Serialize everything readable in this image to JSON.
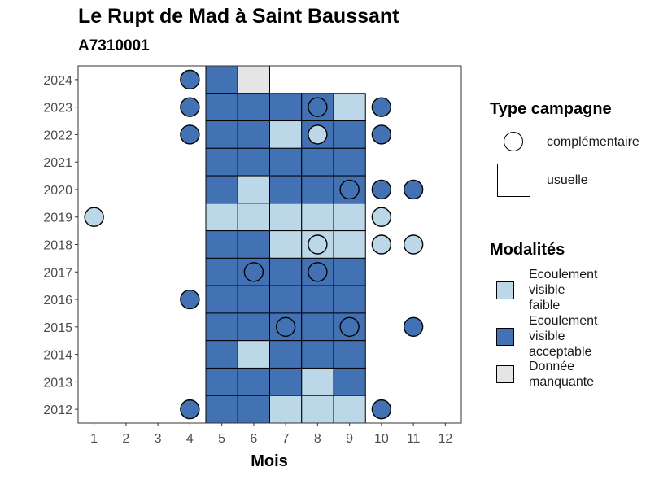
{
  "chart_data": {
    "type": "heatmap",
    "title": "Le Rupt de Mad à Saint Baussant",
    "subtitle": "A7310001",
    "xlabel": "Mois",
    "ylabel": "",
    "x_ticks": [
      "1",
      "2",
      "3",
      "4",
      "5",
      "6",
      "7",
      "8",
      "9",
      "10",
      "11",
      "12"
    ],
    "y_ticks": [
      "2012",
      "2013",
      "2014",
      "2015",
      "2016",
      "2017",
      "2018",
      "2019",
      "2020",
      "2021",
      "2022",
      "2023",
      "2024"
    ],
    "xlim": [
      0.5,
      12.5
    ],
    "ylim": [
      2011.5,
      2024.5
    ],
    "colors": {
      "faible": "#bcd7e8",
      "acceptable": "#4372b4",
      "manquante": "#e5e5e5"
    },
    "legend_type": {
      "title": "Type campagne",
      "items": [
        {
          "label": "complémentaire",
          "shape": "circle"
        },
        {
          "label": "usuelle",
          "shape": "square"
        }
      ]
    },
    "legend_modalites": {
      "title": "Modalités",
      "items": [
        {
          "key": "faible",
          "label_lines": [
            "Ecoulement",
            "visible",
            "faible"
          ]
        },
        {
          "key": "acceptable",
          "label_lines": [
            "Ecoulement",
            "visible",
            "acceptable"
          ]
        },
        {
          "key": "manquante",
          "label_lines": [
            "Donnée",
            "manquante"
          ]
        }
      ]
    },
    "usuelle": [
      {
        "year": 2024,
        "months": {
          "5": "acceptable",
          "6": "manquante"
        }
      },
      {
        "year": 2023,
        "months": {
          "5": "acceptable",
          "6": "acceptable",
          "7": "acceptable",
          "8": "acceptable",
          "9": "faible"
        }
      },
      {
        "year": 2022,
        "months": {
          "5": "acceptable",
          "6": "acceptable",
          "7": "faible",
          "8": "acceptable",
          "9": "acceptable"
        }
      },
      {
        "year": 2021,
        "months": {
          "5": "acceptable",
          "6": "acceptable",
          "7": "acceptable",
          "8": "acceptable",
          "9": "acceptable"
        }
      },
      {
        "year": 2020,
        "months": {
          "5": "acceptable",
          "6": "faible",
          "7": "acceptable",
          "8": "acceptable",
          "9": "acceptable"
        }
      },
      {
        "year": 2019,
        "months": {
          "5": "faible",
          "6": "faible",
          "7": "faible",
          "8": "faible",
          "9": "faible"
        }
      },
      {
        "year": 2018,
        "months": {
          "5": "acceptable",
          "6": "acceptable",
          "7": "faible",
          "8": "faible",
          "9": "faible"
        }
      },
      {
        "year": 2017,
        "months": {
          "5": "acceptable",
          "6": "acceptable",
          "7": "acceptable",
          "8": "acceptable",
          "9": "acceptable"
        }
      },
      {
        "year": 2016,
        "months": {
          "5": "acceptable",
          "6": "acceptable",
          "7": "acceptable",
          "8": "acceptable",
          "9": "acceptable"
        }
      },
      {
        "year": 2015,
        "months": {
          "5": "acceptable",
          "6": "acceptable",
          "7": "acceptable",
          "8": "acceptable",
          "9": "acceptable"
        }
      },
      {
        "year": 2014,
        "months": {
          "5": "acceptable",
          "6": "faible",
          "7": "acceptable",
          "8": "acceptable",
          "9": "acceptable"
        }
      },
      {
        "year": 2013,
        "months": {
          "5": "acceptable",
          "6": "acceptable",
          "7": "acceptable",
          "8": "faible",
          "9": "acceptable"
        }
      },
      {
        "year": 2012,
        "months": {
          "5": "acceptable",
          "6": "acceptable",
          "7": "faible",
          "8": "faible",
          "9": "faible"
        }
      }
    ],
    "complementaire": [
      {
        "year": 2024,
        "month": 4,
        "value": "acceptable"
      },
      {
        "year": 2023,
        "month": 4,
        "value": "acceptable"
      },
      {
        "year": 2023,
        "month": 8,
        "value": "acceptable"
      },
      {
        "year": 2023,
        "month": 10,
        "value": "acceptable"
      },
      {
        "year": 2022,
        "month": 4,
        "value": "acceptable"
      },
      {
        "year": 2022,
        "month": 8,
        "value": "faible"
      },
      {
        "year": 2022,
        "month": 10,
        "value": "acceptable"
      },
      {
        "year": 2020,
        "month": 9,
        "value": "acceptable"
      },
      {
        "year": 2020,
        "month": 10,
        "value": "acceptable"
      },
      {
        "year": 2020,
        "month": 11,
        "value": "acceptable"
      },
      {
        "year": 2019,
        "month": 1,
        "value": "faible"
      },
      {
        "year": 2019,
        "month": 10,
        "value": "faible"
      },
      {
        "year": 2018,
        "month": 8,
        "value": "faible"
      },
      {
        "year": 2018,
        "month": 10,
        "value": "faible"
      },
      {
        "year": 2018,
        "month": 11,
        "value": "faible"
      },
      {
        "year": 2017,
        "month": 6,
        "value": "acceptable"
      },
      {
        "year": 2017,
        "month": 8,
        "value": "acceptable"
      },
      {
        "year": 2016,
        "month": 4,
        "value": "acceptable"
      },
      {
        "year": 2015,
        "month": 7,
        "value": "acceptable"
      },
      {
        "year": 2015,
        "month": 9,
        "value": "acceptable"
      },
      {
        "year": 2015,
        "month": 11,
        "value": "acceptable"
      },
      {
        "year": 2012,
        "month": 4,
        "value": "acceptable"
      },
      {
        "year": 2012,
        "month": 10,
        "value": "acceptable"
      }
    ]
  }
}
